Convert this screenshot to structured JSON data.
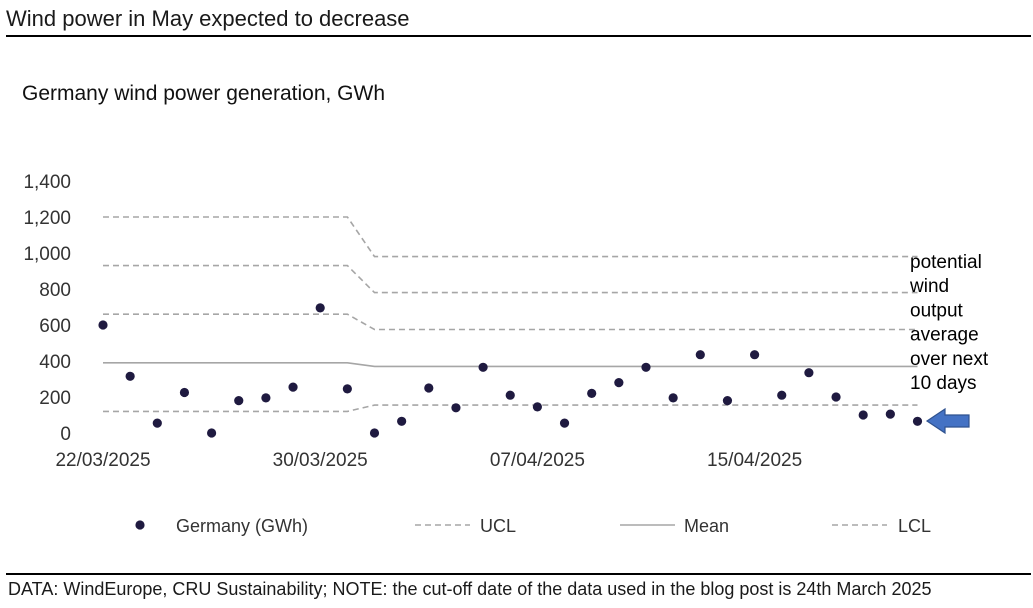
{
  "header": {
    "title": "Wind power in May expected to decrease"
  },
  "footer": {
    "note": "DATA: WindEurope, CRU Sustainability; NOTE: the cut-off date of the data used in the blog post is 24th March 2025"
  },
  "chart_data": {
    "type": "scatter",
    "title": "Germany wind power generation, GWh",
    "xlabel": "",
    "ylabel": "",
    "ylim": [
      0,
      1400
    ],
    "y_ticks": [
      "0",
      "200",
      "400",
      "600",
      "800",
      "1,000",
      "1,200",
      "1,400"
    ],
    "x_ticks": [
      "22/03/2025",
      "30/03/2025",
      "07/04/2025",
      "15/04/2025"
    ],
    "x_tick_index": [
      0,
      8,
      16,
      24
    ],
    "n_days": 31,
    "series": [
      {
        "name": "Germany (GWh)",
        "style": "dots",
        "color": "#1f1a40",
        "values": [
          600,
          315,
          55,
          225,
          0,
          180,
          195,
          255,
          695,
          245,
          0,
          65,
          250,
          140,
          365,
          210,
          145,
          55,
          220,
          280,
          365,
          195,
          435,
          180,
          435,
          210,
          335,
          200,
          100,
          105,
          65
        ]
      },
      {
        "name": "UCL",
        "style": "dashed",
        "color": "#a6a6a6",
        "lines": [
          [
            [
              0,
              1200
            ],
            [
              9,
              1200
            ],
            [
              10,
              980
            ],
            [
              30,
              980
            ]
          ],
          [
            [
              0,
              930
            ],
            [
              9,
              930
            ],
            [
              10,
              780
            ],
            [
              30,
              780
            ]
          ],
          [
            [
              0,
              660
            ],
            [
              9,
              660
            ],
            [
              10,
              575
            ],
            [
              30,
              575
            ]
          ]
        ]
      },
      {
        "name": "Mean",
        "style": "solid",
        "color": "#a6a6a6",
        "lines": [
          [
            [
              0,
              390
            ],
            [
              9,
              390
            ],
            [
              10,
              370
            ],
            [
              30,
              370
            ]
          ]
        ]
      },
      {
        "name": "LCL",
        "style": "dashed",
        "color": "#a6a6a6",
        "lines": [
          [
            [
              0,
              120
            ],
            [
              9,
              120
            ],
            [
              10,
              155
            ],
            [
              30,
              155
            ]
          ]
        ]
      }
    ],
    "annotation": {
      "lines": [
        "potential",
        "wind",
        "output",
        "average",
        "over next",
        "10 days"
      ],
      "arrow_color": "#4472c4"
    },
    "legend": [
      {
        "label": "Germany (GWh)",
        "kind": "dot"
      },
      {
        "label": "UCL",
        "kind": "dashed"
      },
      {
        "label": "Mean",
        "kind": "solid"
      },
      {
        "label": "LCL",
        "kind": "dashed"
      }
    ],
    "legend_position": "bottom"
  }
}
